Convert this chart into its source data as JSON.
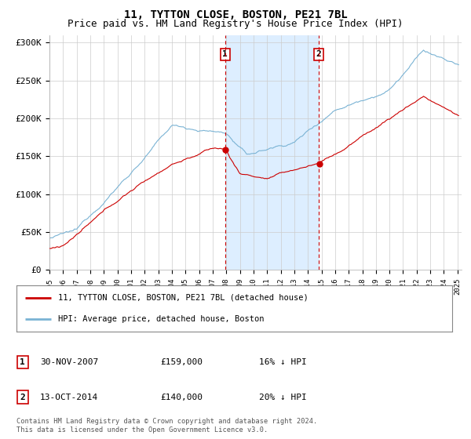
{
  "title": "11, TYTTON CLOSE, BOSTON, PE21 7BL",
  "subtitle": "Price paid vs. HM Land Registry's House Price Index (HPI)",
  "ylim": [
    0,
    310000
  ],
  "yticks": [
    0,
    50000,
    100000,
    150000,
    200000,
    250000,
    300000
  ],
  "ytick_labels": [
    "£0",
    "£50K",
    "£100K",
    "£150K",
    "£200K",
    "£250K",
    "£300K"
  ],
  "sale1_date_num": 2007.917,
  "sale1_date_str": "30-NOV-2007",
  "sale1_price": 159000,
  "sale1_hpi_pct": "16% ↓ HPI",
  "sale2_date_num": 2014.792,
  "sale2_date_str": "13-OCT-2014",
  "sale2_price": 140000,
  "sale2_hpi_pct": "20% ↓ HPI",
  "legend_line1": "11, TYTTON CLOSE, BOSTON, PE21 7BL (detached house)",
  "legend_line2": "HPI: Average price, detached house, Boston",
  "footer": "Contains HM Land Registry data © Crown copyright and database right 2024.\nThis data is licensed under the Open Government Licence v3.0.",
  "hpi_color": "#7ab3d4",
  "sale_color": "#cc0000",
  "shaded_color": "#ddeeff",
  "marker_box_color": "#cc0000",
  "background_color": "#ffffff",
  "title_fontsize": 10,
  "subtitle_fontsize": 9,
  "tick_fontsize": 8
}
